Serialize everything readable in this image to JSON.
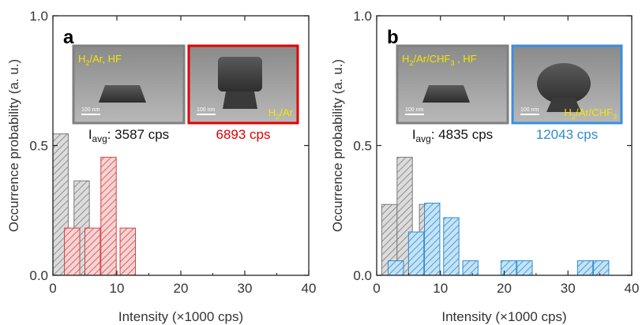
{
  "chart_data": [
    {
      "type": "bar",
      "panel_label": "a",
      "xlabel": "Intensity (×1000 cps)",
      "ylabel": "Occurrence probability (a. u.)",
      "xlim": [
        0,
        40
      ],
      "ylim": [
        0,
        1.0
      ],
      "x_ticks": [
        "0",
        "10",
        "20",
        "30",
        "40"
      ],
      "y_ticks": [
        "0.0",
        "0.5",
        "1.0"
      ],
      "bin_width": 2.4,
      "series": [
        {
          "x": [
            0,
            3.3,
            5.7
          ],
          "values": [
            0.545,
            0.364,
            0.091
          ],
          "color": "#7a7a7a",
          "fill": "#dcdcdc"
        },
        {
          "x": [
            1.8,
            5.0,
            7.5,
            10.5
          ],
          "values": [
            0.182,
            0.182,
            0.455,
            0.182
          ],
          "color": "#d04646",
          "fill": "#f7d3d3"
        }
      ],
      "insets": [
        {
          "label_parts": [
            "H",
            "2",
            "/Ar, HF"
          ],
          "scale_bar": "100 nm",
          "border": "#808080",
          "caption_parts": [
            "I",
            "avg",
            ": 3587 cps"
          ],
          "caption_color": "#111111"
        },
        {
          "label_parts": [
            "H",
            "2",
            "/Ar"
          ],
          "scale_bar": "100 nm",
          "border": "#e00000",
          "caption_parts": [
            "",
            "",
            "6893 cps"
          ],
          "caption_color": "#e00000"
        }
      ]
    },
    {
      "type": "bar",
      "panel_label": "b",
      "xlabel": "Intensity (×1000 cps)",
      "ylabel": "Occurrence probability (a. u.)",
      "xlim": [
        0,
        40
      ],
      "ylim": [
        0,
        1.0
      ],
      "x_ticks": [
        "0",
        "10",
        "20",
        "30",
        "40"
      ],
      "y_ticks": [
        "0.0",
        "0.5",
        "1.0"
      ],
      "bin_width": 2.4,
      "series": [
        {
          "x": [
            0.8,
            3.2,
            6.7
          ],
          "values": [
            0.273,
            0.455,
            0.273
          ],
          "color": "#7a7a7a",
          "fill": "#dcdcdc"
        },
        {
          "x": [
            1.8,
            5.0,
            7.5,
            10.5,
            13.5,
            19.5,
            22.0,
            31.5,
            34.0
          ],
          "values": [
            0.056,
            0.167,
            0.278,
            0.222,
            0.056,
            0.056,
            0.056,
            0.056,
            0.056
          ],
          "color": "#2e8bd0",
          "fill": "#c4e3f7"
        }
      ],
      "insets": [
        {
          "label_parts": [
            "H",
            "2",
            "/Ar/CHF",
            "3",
            " , HF"
          ],
          "scale_bar": "100 nm",
          "border": "#808080",
          "caption_parts": [
            "I",
            "avg",
            ": 4835 cps"
          ],
          "caption_color": "#111111"
        },
        {
          "label_parts": [
            "H",
            "2",
            "/Ar/CHF",
            "3"
          ],
          "scale_bar": "100 nm",
          "border": "#3a8fe0",
          "caption_parts": [
            "",
            "",
            "12043 cps"
          ],
          "caption_color": "#2e8bd0"
        }
      ]
    }
  ]
}
